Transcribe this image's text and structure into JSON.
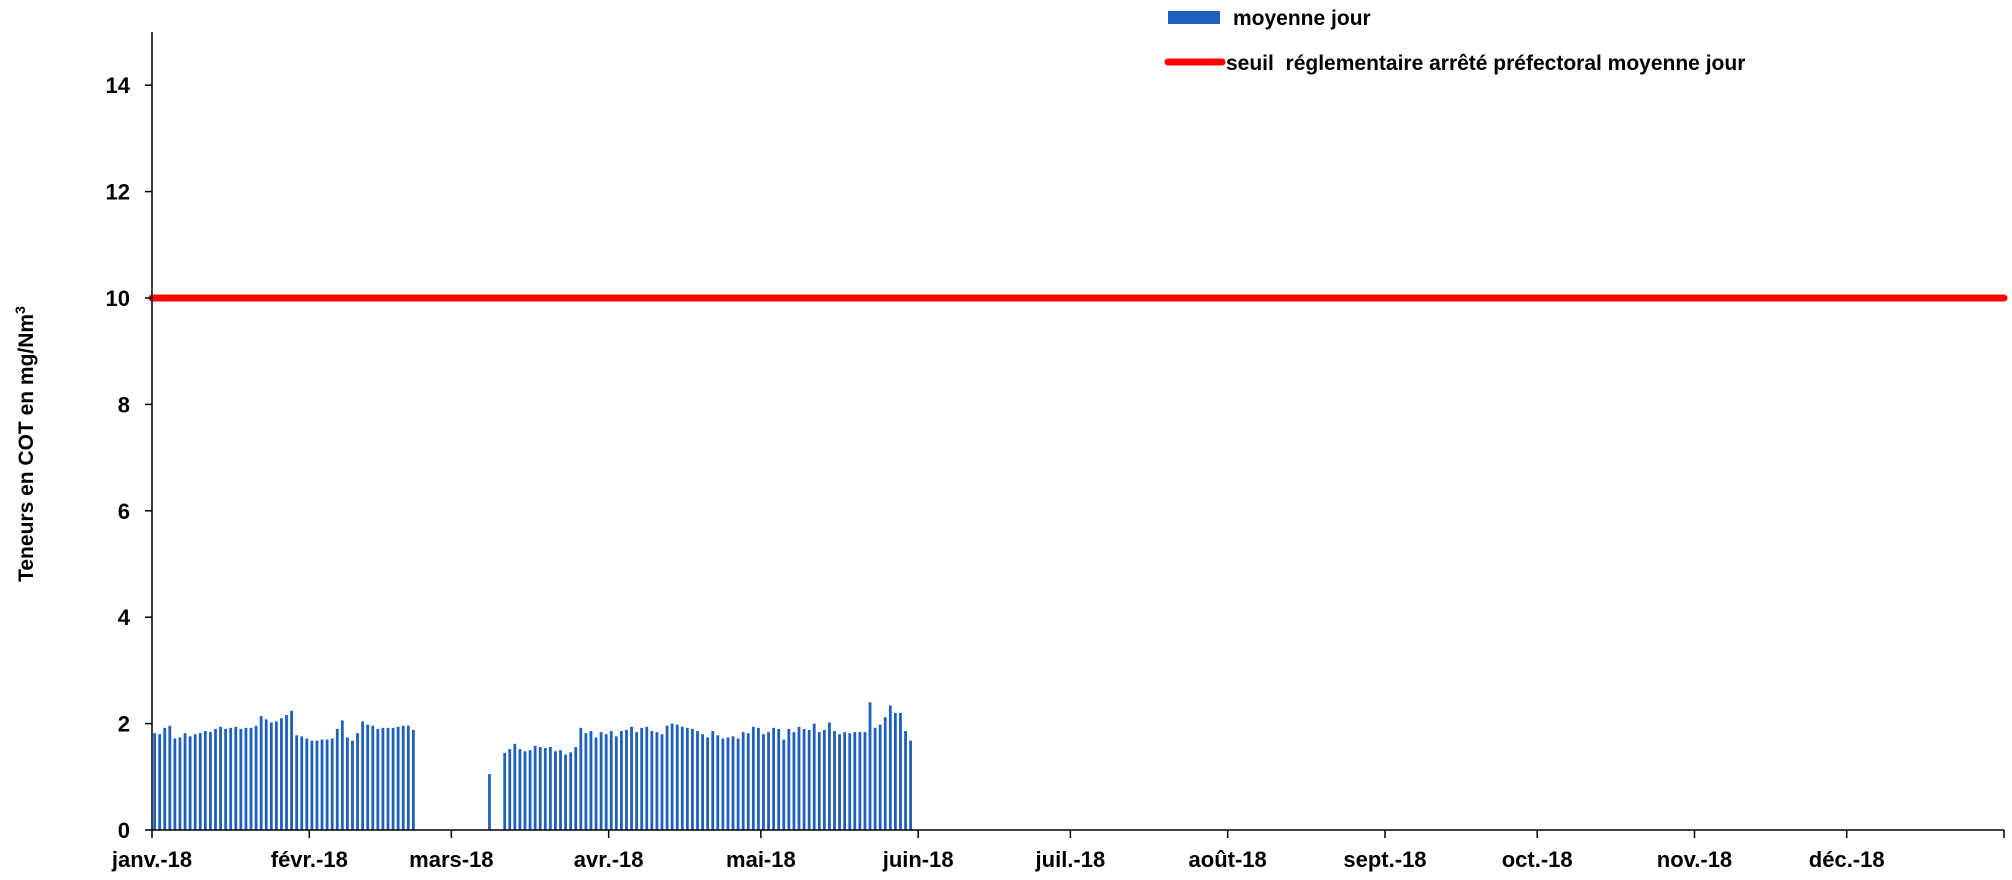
{
  "chart_data": {
    "type": "bar",
    "title": "",
    "xlabel": "",
    "ylabel": "Teneurs en COT en mg/Nm",
    "ylabel_sup": "3",
    "ylim": [
      0,
      15
    ],
    "yticks": [
      0,
      2,
      4,
      6,
      8,
      10,
      12,
      14
    ],
    "xlim": [
      "2018-01-01",
      "2018-12-31"
    ],
    "x_tick_labels": [
      "janv.-18",
      "févr.-18",
      "mars-18",
      "avr.-18",
      "mai-18",
      "juin-18",
      "juil.-18",
      "août-18",
      "sept.-18",
      "oct.-18",
      "nov.-18",
      "déc.-18"
    ],
    "grid": false,
    "legend_position": "top-right",
    "series": [
      {
        "name": "moyenne jour",
        "kind": "bar",
        "color": "#1f5fbf",
        "segments": [
          {
            "start": "2018-01-01",
            "values": [
              1.82,
              1.8,
              1.92,
              1.96,
              1.72,
              1.74,
              1.82,
              1.76,
              1.8,
              1.82,
              1.86,
              1.84,
              1.9,
              1.94,
              1.9,
              1.92,
              1.94,
              1.9,
              1.92,
              1.92,
              1.96,
              2.14,
              2.08,
              2.02,
              2.04,
              2.1,
              2.16,
              2.24,
              1.78,
              1.76,
              1.72,
              1.68,
              1.68,
              1.7,
              1.7,
              1.72,
              1.9,
              2.06,
              1.74,
              1.68,
              1.82,
              2.04,
              1.98,
              1.96,
              1.9,
              1.92,
              1.92,
              1.92,
              1.94,
              1.96,
              1.96,
              1.88
            ]
          },
          {
            "start": "2018-03-08",
            "values": [
              1.05,
              0,
              0,
              1.45,
              1.52,
              1.62,
              1.52,
              1.48,
              1.5,
              1.58,
              1.56,
              1.54,
              1.56,
              1.48,
              1.5,
              1.42,
              1.46,
              1.56,
              1.92,
              1.82,
              1.86,
              1.74,
              1.84,
              1.8,
              1.86,
              1.76,
              1.86,
              1.88,
              1.94,
              1.84,
              1.92,
              1.94,
              1.86,
              1.84,
              1.8,
              1.96,
              2.0,
              1.98,
              1.94,
              1.92,
              1.9,
              1.86,
              1.8,
              1.74,
              1.86,
              1.78,
              1.72,
              1.74,
              1.76,
              1.72,
              1.84,
              1.82,
              1.94,
              1.92,
              1.8,
              1.84,
              1.92,
              1.9,
              1.7,
              1.9,
              1.84,
              1.94,
              1.9,
              1.88,
              2.0,
              1.84,
              1.88,
              2.02,
              1.86,
              1.8,
              1.84,
              1.82,
              1.84,
              1.84,
              1.84,
              2.4,
              1.92,
              1.98,
              2.12,
              2.34,
              2.2,
              2.2,
              1.86,
              1.68
            ]
          }
        ]
      },
      {
        "name": "seuil  réglementaire arrêté préfectoral moyenne jour",
        "kind": "line",
        "color": "#ff0000",
        "value": 10
      }
    ]
  }
}
